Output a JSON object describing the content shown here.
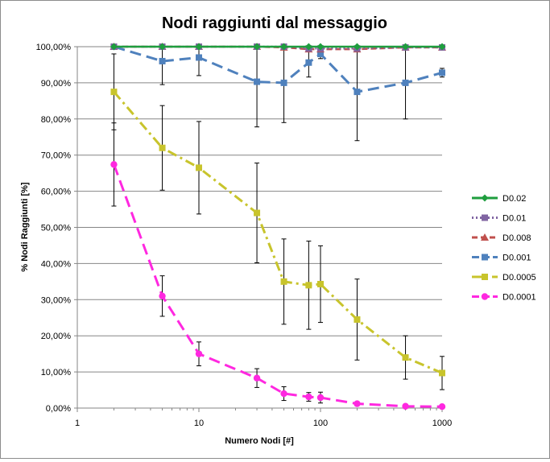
{
  "chart_data": {
    "type": "line",
    "title": "Nodi raggiunti dal messaggio",
    "xlabel": "Numero Nodi [#]",
    "ylabel": "% Nodi Raggiunti [%]",
    "x_scale": "log",
    "xlim": [
      1,
      1000
    ],
    "ylim": [
      0,
      100
    ],
    "x_ticks": [
      1,
      10,
      100,
      1000
    ],
    "x_tick_labels": [
      "1",
      "10",
      "100",
      "1000"
    ],
    "y_ticks": [
      0,
      10,
      20,
      30,
      40,
      50,
      60,
      70,
      80,
      90,
      100
    ],
    "y_tick_labels": [
      "0,00%",
      "10,00%",
      "20,00%",
      "30,00%",
      "40,00%",
      "50,00%",
      "60,00%",
      "70,00%",
      "80,00%",
      "90,00%",
      "100,00%"
    ],
    "grid": "horizontal",
    "legend_position": "right",
    "x": [
      2,
      5,
      10,
      30,
      50,
      80,
      100,
      200,
      500,
      1000
    ],
    "series": [
      {
        "name": "D0.02",
        "color": "#1e9e3e",
        "dash": "solid",
        "marker": "diamond",
        "values": [
          100,
          100,
          100,
          100,
          100,
          100,
          100,
          100,
          100,
          100
        ],
        "errors": []
      },
      {
        "name": "D0.01",
        "color": "#8064a2",
        "dash": "dot",
        "marker": "square",
        "values": [
          100,
          100,
          100,
          100,
          100,
          99.5,
          99.5,
          99.5,
          99.8,
          99.8
        ],
        "errors": []
      },
      {
        "name": "D0.008",
        "color": "#c0504d",
        "dash": "dash",
        "marker": "triangle",
        "values": [
          100,
          100,
          100,
          100,
          99.8,
          99.3,
          99.3,
          99.3,
          99.8,
          99.8
        ],
        "errors": []
      },
      {
        "name": "D0.001",
        "color": "#4f81bd",
        "dash": "longdash",
        "marker": "square",
        "values": [
          100,
          96,
          97,
          90.3,
          90,
          95.6,
          98,
          87.5,
          90,
          92.8
        ],
        "errors": [
          null,
          6.5,
          5,
          12.5,
          11,
          4,
          1.3,
          13.5,
          10,
          1.2
        ]
      },
      {
        "name": "D0.0005",
        "color": "#c8c42c",
        "dash": "dashdot",
        "marker": "square",
        "values": [
          87.5,
          72,
          66.5,
          54,
          35,
          34,
          34.3,
          24.5,
          14,
          9.7
        ],
        "errors": [
          10.5,
          11.7,
          12.8,
          13.8,
          11.8,
          12.2,
          10.6,
          11.2,
          6,
          4.6
        ]
      },
      {
        "name": "D0.0001",
        "color": "#ff28e0",
        "dash": "longdash",
        "marker": "circle",
        "values": [
          67.4,
          31,
          15,
          8.3,
          4,
          3.1,
          2.9,
          1.2,
          0.5,
          0.4
        ],
        "errors": [
          11.5,
          5.6,
          3.3,
          2.6,
          1.9,
          1.2,
          1.5,
          null,
          null,
          null
        ]
      }
    ]
  }
}
